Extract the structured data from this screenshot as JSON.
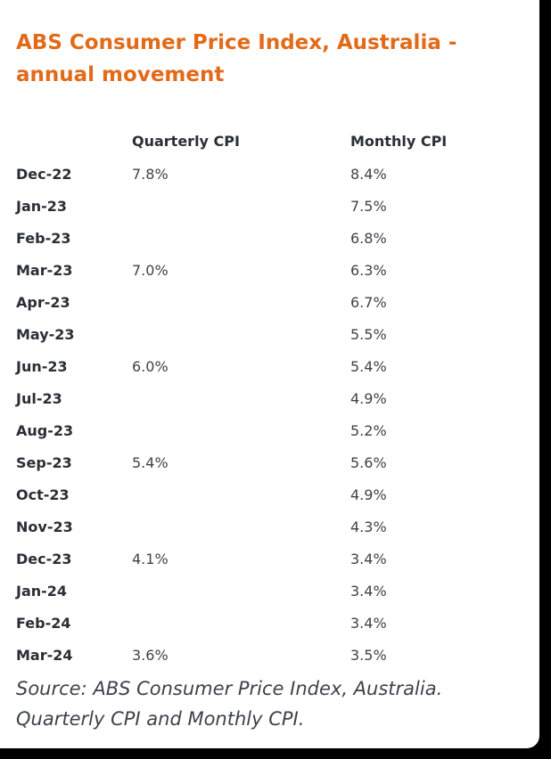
{
  "chart_data": {
    "type": "table",
    "title": "ABS Consumer Price Index, Australia - annual movement",
    "columns": [
      "",
      "Quarterly CPI",
      "Monthly CPI"
    ],
    "rows": [
      {
        "period": "Dec-22",
        "quarterly": "7.8%",
        "monthly": "8.4%"
      },
      {
        "period": "Jan-23",
        "quarterly": "",
        "monthly": "7.5%"
      },
      {
        "period": "Feb-23",
        "quarterly": "",
        "monthly": "6.8%"
      },
      {
        "period": "Mar-23",
        "quarterly": "7.0%",
        "monthly": "6.3%"
      },
      {
        "period": "Apr-23",
        "quarterly": "",
        "monthly": "6.7%"
      },
      {
        "period": "May-23",
        "quarterly": "",
        "monthly": "5.5%"
      },
      {
        "period": "Jun-23",
        "quarterly": "6.0%",
        "monthly": "5.4%"
      },
      {
        "period": "Jul-23",
        "quarterly": "",
        "monthly": "4.9%"
      },
      {
        "period": "Aug-23",
        "quarterly": "",
        "monthly": "5.2%"
      },
      {
        "period": "Sep-23",
        "quarterly": "5.4%",
        "monthly": "5.6%"
      },
      {
        "period": "Oct-23",
        "quarterly": "",
        "monthly": "4.9%"
      },
      {
        "period": "Nov-23",
        "quarterly": "",
        "monthly": "4.3%"
      },
      {
        "period": "Dec-23",
        "quarterly": "4.1%",
        "monthly": "3.4%"
      },
      {
        "period": "Jan-24",
        "quarterly": "",
        "monthly": "3.4%"
      },
      {
        "period": "Feb-24",
        "quarterly": "",
        "monthly": "3.4%"
      },
      {
        "period": "Mar-24",
        "quarterly": "3.6%",
        "monthly": "3.5%"
      }
    ],
    "source": "Source: ABS Consumer Price Index, Australia. Quarterly CPI and Monthly CPI."
  },
  "colors": {
    "title": "#e26b1a",
    "text": "#2a2f36",
    "background": "#ffffff"
  }
}
